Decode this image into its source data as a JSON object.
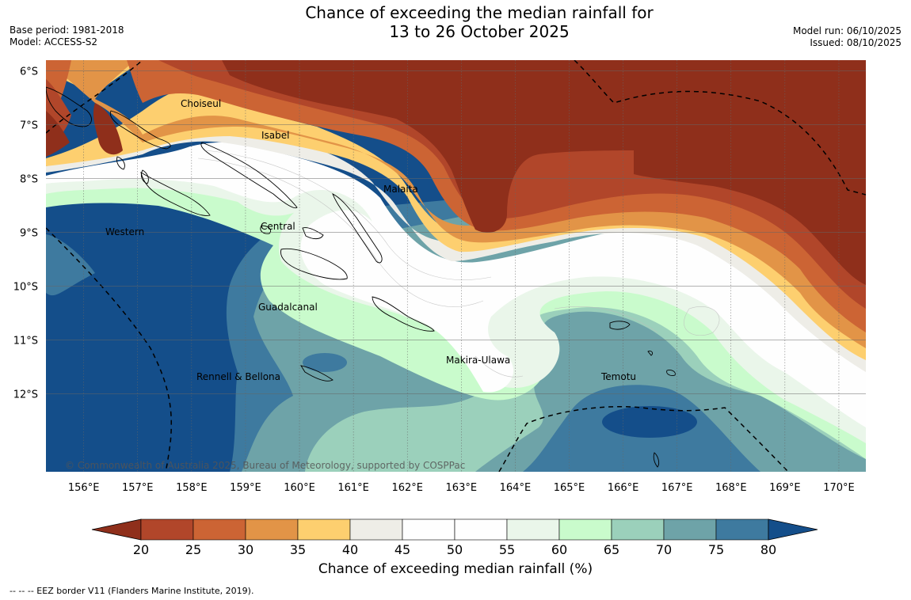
{
  "title_line1": "Chance of exceeding the median rainfall for",
  "title_line2": "13 to 26 October 2025",
  "base_period": "Base period: 1981-2018",
  "model": "Model: ACCESS-S2",
  "model_run": "Model run: 06/10/2025",
  "issued": "Issued: 08/10/2025",
  "copyright": "© Commonwealth of Australia 2025, Bureau of Meteorology, supported by COSPPac",
  "eez_note": "--  --  -- EEZ border V11 (Flanders Marine Institute, 2019).",
  "lat_labels": [
    "6°S",
    "7°S",
    "8°S",
    "9°S",
    "10°S",
    "11°S",
    "12°S"
  ],
  "lon_labels": [
    "156°E",
    "157°E",
    "158°E",
    "159°E",
    "160°E",
    "161°E",
    "162°E",
    "163°E",
    "164°E",
    "165°E",
    "166°E",
    "167°E",
    "168°E",
    "169°E",
    "170°E"
  ],
  "provinces": {
    "choiseul": "Choiseul",
    "isabel": "Isabel",
    "malaita": "Malaita",
    "central": "Central",
    "western": "Western",
    "guadalcanal": "Guadalcanal",
    "makira": "Makira-Ulawa",
    "rennell": "Rennell & Bellona",
    "temotu": "Temotu"
  },
  "colorbar": {
    "label": "Chance of exceeding median rainfall (%)",
    "ticks": [
      "20",
      "25",
      "30",
      "35",
      "40",
      "45",
      "50",
      "55",
      "60",
      "65",
      "70",
      "75",
      "80"
    ],
    "colors": {
      "lt20": "#8f2f1b",
      "20-25": "#b1462a",
      "25-30": "#cc6434",
      "30-35": "#e29447",
      "35-40": "#fdcf6f",
      "40-45": "#eeede7",
      "45-50": "#fefefe",
      "50-55": "#fefefe",
      "55-60": "#eaf6ea",
      "60-65": "#c9fbcc",
      "65-70": "#9bd0bb",
      "70-75": "#6ea3a8",
      "75-80": "#3e7a9f",
      "gt80": "#144e8a"
    }
  }
}
